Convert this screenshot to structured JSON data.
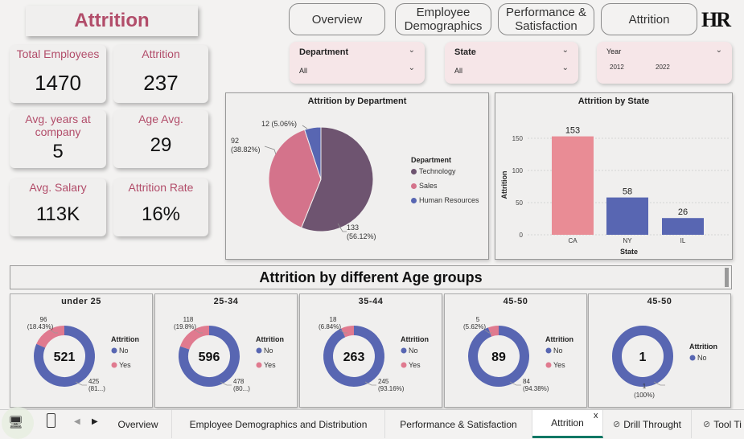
{
  "header": {
    "title": "Attrition",
    "logo": "HR"
  },
  "nav": [
    {
      "label": "Overview"
    },
    {
      "label": "Employee Demographics"
    },
    {
      "label": "Performance & Satisfaction"
    },
    {
      "label": "Attrition"
    }
  ],
  "kpis": [
    {
      "label": "Total Employees",
      "value": "1470"
    },
    {
      "label": "Attrition",
      "value": "237"
    },
    {
      "label": "Avg. years at company",
      "value": "5"
    },
    {
      "label": "Age Avg.",
      "value": "29"
    },
    {
      "label": "Avg. Salary",
      "value": "113K"
    },
    {
      "label": "Attrition Rate",
      "value": "16%"
    }
  ],
  "slicers": {
    "department": {
      "label": "Department",
      "value": "All"
    },
    "state": {
      "label": "State",
      "value": "All"
    },
    "year": {
      "label": "Year",
      "from": "2012",
      "to": "2022"
    }
  },
  "colors": {
    "technology": "#6e5470",
    "sales": "#d4738b",
    "hr": "#5866b2",
    "bar_ca": "#e98c95",
    "bar_blue": "#5866b2",
    "ring_yes": "#e07a8f",
    "ring_no": "#5866b2",
    "accent": "#b24d6a"
  },
  "chart_data": [
    {
      "type": "pie",
      "title": "Attrition by Department",
      "legend_title": "Department",
      "legend_position": "right",
      "slices": [
        {
          "name": "Technology",
          "value": 133,
          "label": "133\n(56.12%)"
        },
        {
          "name": "Sales",
          "value": 92,
          "label": "92\n(38.82%)"
        },
        {
          "name": "Human Resources",
          "value": 12,
          "label": "12 (5.06%)"
        }
      ]
    },
    {
      "type": "bar",
      "title": "Attrition by State",
      "categories": [
        "CA",
        "NY",
        "IL"
      ],
      "values": [
        153,
        58,
        26
      ],
      "xlabel": "State",
      "ylabel": "Attrition",
      "ylim": [
        0,
        175
      ],
      "yticks": [
        0,
        50,
        100,
        150
      ],
      "grid": true
    }
  ],
  "age_section": {
    "title": "Attrition by different Age groups",
    "legend_title": "Attrition",
    "legend": [
      "No",
      "Yes"
    ],
    "groups": [
      {
        "label": "under 25",
        "total": "521",
        "no": 425,
        "yes": 96,
        "no_label": "425",
        "no_pct": "(81...)",
        "yes_label": "96",
        "yes_pct": "(18.43%)"
      },
      {
        "label": "25-34",
        "total": "596",
        "no": 478,
        "yes": 118,
        "no_label": "478",
        "no_pct": "(80...)",
        "yes_label": "118",
        "yes_pct": "(19.8%)"
      },
      {
        "label": "35-44",
        "total": "263",
        "no": 245,
        "yes": 18,
        "no_label": "245",
        "no_pct": "(93.16%)",
        "yes_label": "18",
        "yes_pct": "(6.84%)"
      },
      {
        "label": "45-50",
        "total": "89",
        "no": 84,
        "yes": 5,
        "no_label": "84",
        "no_pct": "(94.38%)",
        "yes_label": "5",
        "yes_pct": "(5.62%)"
      },
      {
        "label": "45-50",
        "total": "1",
        "no": 1,
        "yes": 0,
        "no_label": "1",
        "no_pct": "(100%)",
        "yes_label": "",
        "yes_pct": ""
      }
    ]
  },
  "tabs": [
    {
      "label": "Overview"
    },
    {
      "label": "Employee Demographics and Distribution"
    },
    {
      "label": "Performance & Satisfaction"
    },
    {
      "label": "Attrition",
      "close": "x"
    },
    {
      "label": "Drill Throught"
    },
    {
      "label": "Tool Ti"
    }
  ]
}
